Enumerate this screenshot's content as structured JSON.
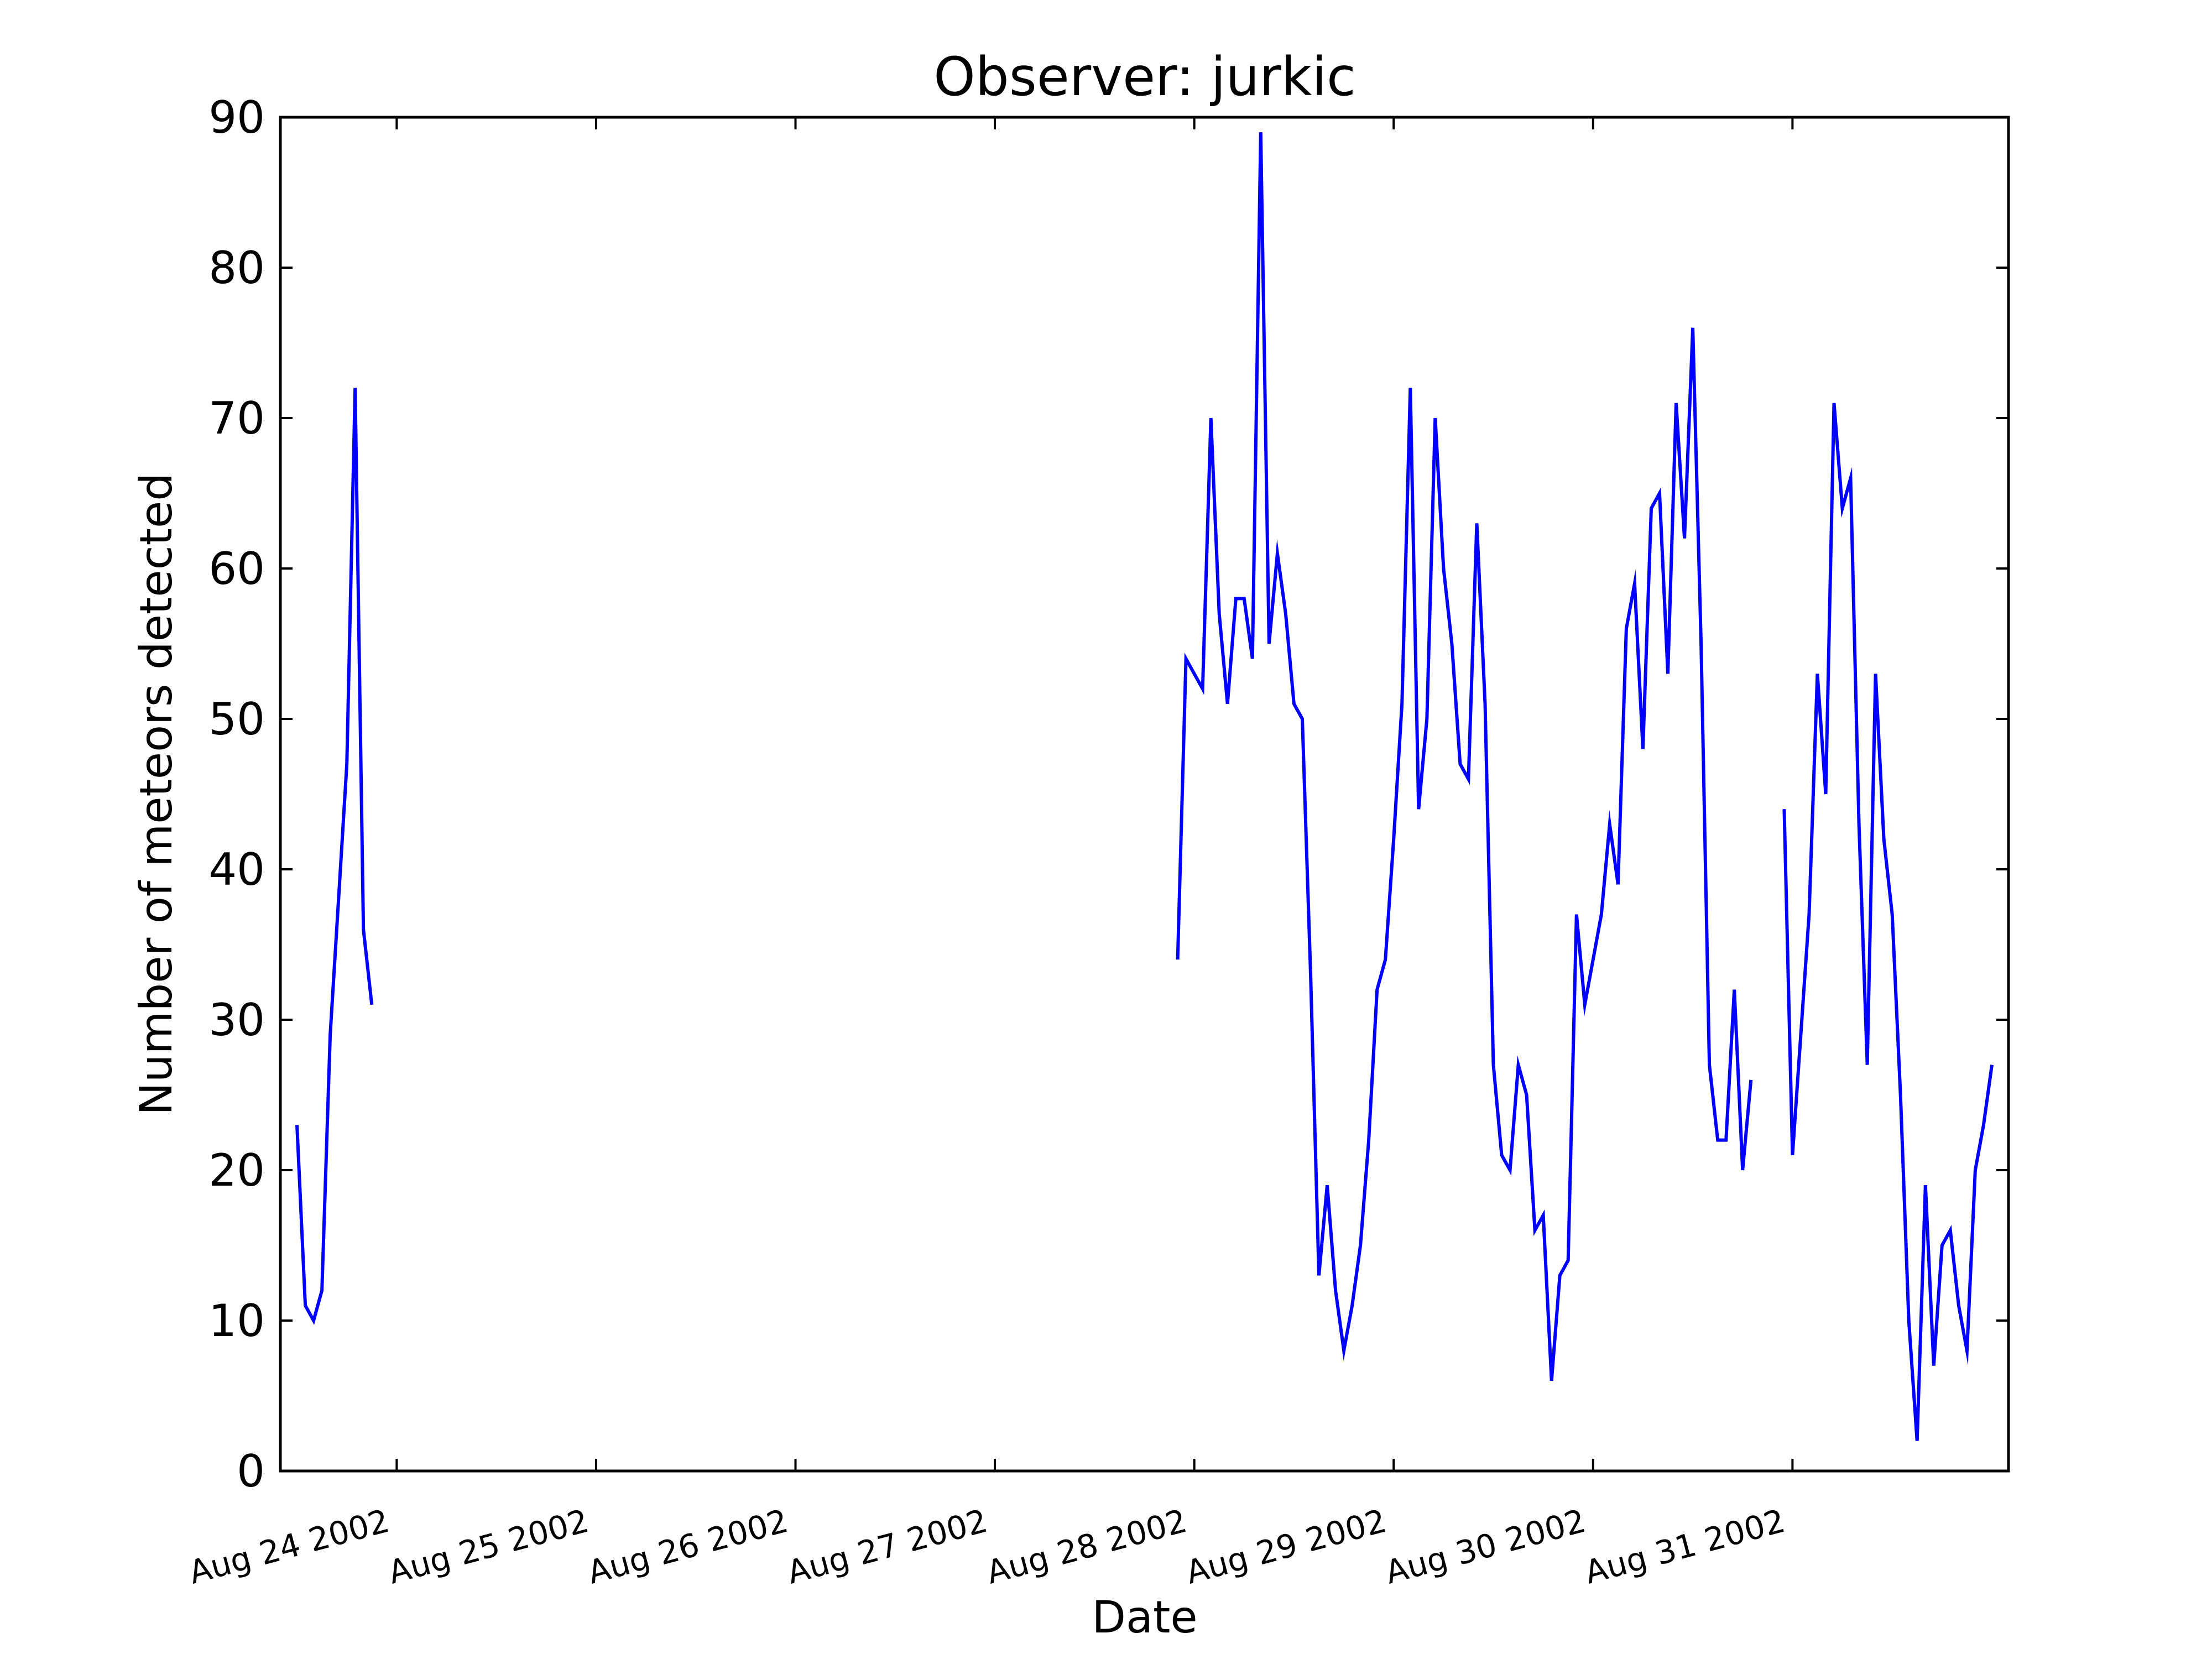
{
  "chart_data": {
    "type": "line",
    "title": "Observer: jurkic",
    "xlabel": "Date",
    "ylabel": "Number of meteors detected",
    "ylim": [
      0,
      90
    ],
    "xlim": [
      "2002-08-23T10:00",
      "2002-09-01T02:00"
    ],
    "grid": false,
    "legend": "none",
    "x_ticks": [
      {
        "date": "2002-08-24T00:00",
        "label": "Aug 24 2002"
      },
      {
        "date": "2002-08-25T00:00",
        "label": "Aug 25 2002"
      },
      {
        "date": "2002-08-26T00:00",
        "label": "Aug 26 2002"
      },
      {
        "date": "2002-08-27T00:00",
        "label": "Aug 27 2002"
      },
      {
        "date": "2002-08-28T00:00",
        "label": "Aug 28 2002"
      },
      {
        "date": "2002-08-29T00:00",
        "label": "Aug 29 2002"
      },
      {
        "date": "2002-08-30T00:00",
        "label": "Aug 30 2002"
      },
      {
        "date": "2002-08-31T00:00",
        "label": "Aug 31 2002"
      }
    ],
    "y_ticks": [
      0,
      10,
      20,
      30,
      40,
      50,
      60,
      70,
      80,
      90
    ],
    "line_color": "#0000ff",
    "series": [
      {
        "segments": [
          {
            "start": "2002-08-23T12:00",
            "step_hours": 1,
            "values": [
              23,
              11,
              10,
              12,
              29,
              38,
              47,
              72,
              36,
              31
            ]
          },
          {
            "start": "2002-08-27T22:00",
            "step_hours": 1,
            "values": [
              34,
              54,
              53,
              52,
              70,
              57,
              51,
              58,
              58,
              54,
              89,
              55,
              61,
              57,
              51,
              50,
              33,
              13,
              19,
              12,
              8,
              11,
              15,
              22,
              32,
              34,
              42,
              51,
              72,
              44,
              50,
              70,
              60,
              55,
              47,
              46,
              63,
              51,
              27,
              21,
              20,
              27,
              25,
              16,
              17,
              6,
              13,
              14,
              37,
              31,
              34,
              37,
              43,
              39,
              56,
              59,
              48,
              64,
              65,
              53,
              71,
              62,
              76,
              55,
              27,
              22,
              22,
              32,
              20,
              26
            ]
          },
          {
            "start": "2002-08-30T23:00",
            "step_hours": 1,
            "values": [
              44,
              21,
              29,
              37,
              53,
              45,
              71,
              64,
              66,
              43,
              27,
              53,
              42,
              37,
              25,
              10,
              2,
              19,
              7,
              15,
              16,
              11,
              8,
              20,
              23,
              27
            ]
          }
        ]
      }
    ]
  }
}
